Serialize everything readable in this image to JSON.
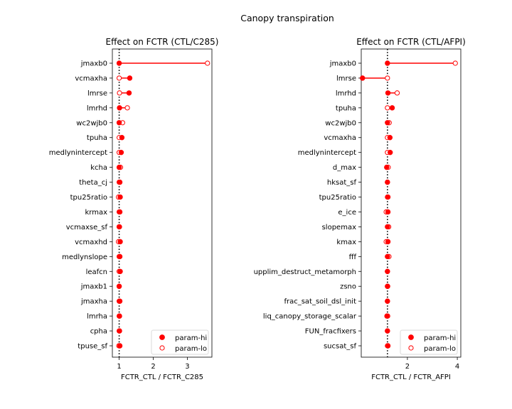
{
  "suptitle": "Canopy transpiration",
  "colors": {
    "hi": "#ff0000",
    "lo": "#ff0000",
    "ref_line": "#000000"
  },
  "chart_data": [
    {
      "type": "dumbbell",
      "title": "Effect on FCTR (CTL/C285)",
      "xlabel": "FCTR_CTL / FCTR_C285",
      "ylabel": "",
      "xlim": [
        0.8,
        3.72
      ],
      "xticks": [
        1,
        2,
        3
      ],
      "reference_x": 1.0,
      "grid": false,
      "legend": {
        "position": "lower-right",
        "entries": [
          "param-hi",
          "param-lo"
        ]
      },
      "categories": [
        "jmaxb0",
        "vcmaxha",
        "lmrse",
        "lmrhd",
        "wc2wjb0",
        "tpuha",
        "medlynintercept",
        "kcha",
        "theta_cj",
        "tpu25ratio",
        "krmax",
        "vcmaxse_sf",
        "vcmaxhd",
        "medlynslope",
        "leafcn",
        "jmaxb1",
        "jmaxha",
        "lmrha",
        "cpha",
        "tpuse_sf"
      ],
      "series": [
        {
          "name": "param-hi",
          "values": [
            1.0,
            1.31,
            1.29,
            1.01,
            1.0,
            1.08,
            1.06,
            1.0,
            1.02,
            1.03,
            1.02,
            1.0,
            1.03,
            1.02,
            1.03,
            1.0,
            1.02,
            1.01,
            1.01,
            1.02
          ]
        },
        {
          "name": "param-lo",
          "values": [
            3.59,
            1.0,
            1.01,
            1.24,
            1.1,
            1.0,
            1.0,
            1.04,
            1.0,
            0.98,
            1.0,
            1.01,
            0.98,
            1.0,
            1.0,
            1.0,
            1.0,
            1.0,
            1.0,
            0.99
          ]
        }
      ]
    },
    {
      "type": "dumbbell",
      "title": "Effect on FCTR (CTL/AFPI)",
      "xlabel": "FCTR_CTL / FCTR_AFPI",
      "ylabel": "",
      "xlim": [
        0.15,
        4.14
      ],
      "xticks": [
        2,
        4
      ],
      "reference_x": 1.2,
      "grid": false,
      "legend": {
        "position": "lower-right",
        "entries": [
          "param-hi",
          "param-lo"
        ]
      },
      "categories": [
        "jmaxb0",
        "lmrse",
        "lmrhd",
        "tpuha",
        "wc2wjb0",
        "vcmaxha",
        "medlynintercept",
        "d_max",
        "hksat_sf",
        "tpu25ratio",
        "e_ice",
        "slopemax",
        "kmax",
        "fff",
        "upplim_destruct_metamorph",
        "zsno",
        "frac_sat_soil_dsl_init",
        "liq_canopy_storage_scalar",
        "FUN_fracfixers",
        "sucsat_sf"
      ],
      "series": [
        {
          "name": "param-hi",
          "values": [
            1.2,
            0.2,
            1.22,
            1.39,
            1.2,
            1.3,
            1.31,
            1.17,
            1.2,
            1.22,
            1.22,
            1.2,
            1.22,
            1.2,
            1.2,
            1.2,
            1.2,
            1.18,
            1.2,
            1.22
          ]
        },
        {
          "name": "param-lo",
          "values": [
            3.92,
            1.2,
            1.59,
            1.2,
            1.27,
            1.2,
            1.2,
            1.23,
            1.2,
            1.2,
            1.15,
            1.25,
            1.15,
            1.26,
            1.2,
            1.21,
            1.2,
            1.21,
            1.2,
            1.2
          ]
        }
      ]
    }
  ]
}
